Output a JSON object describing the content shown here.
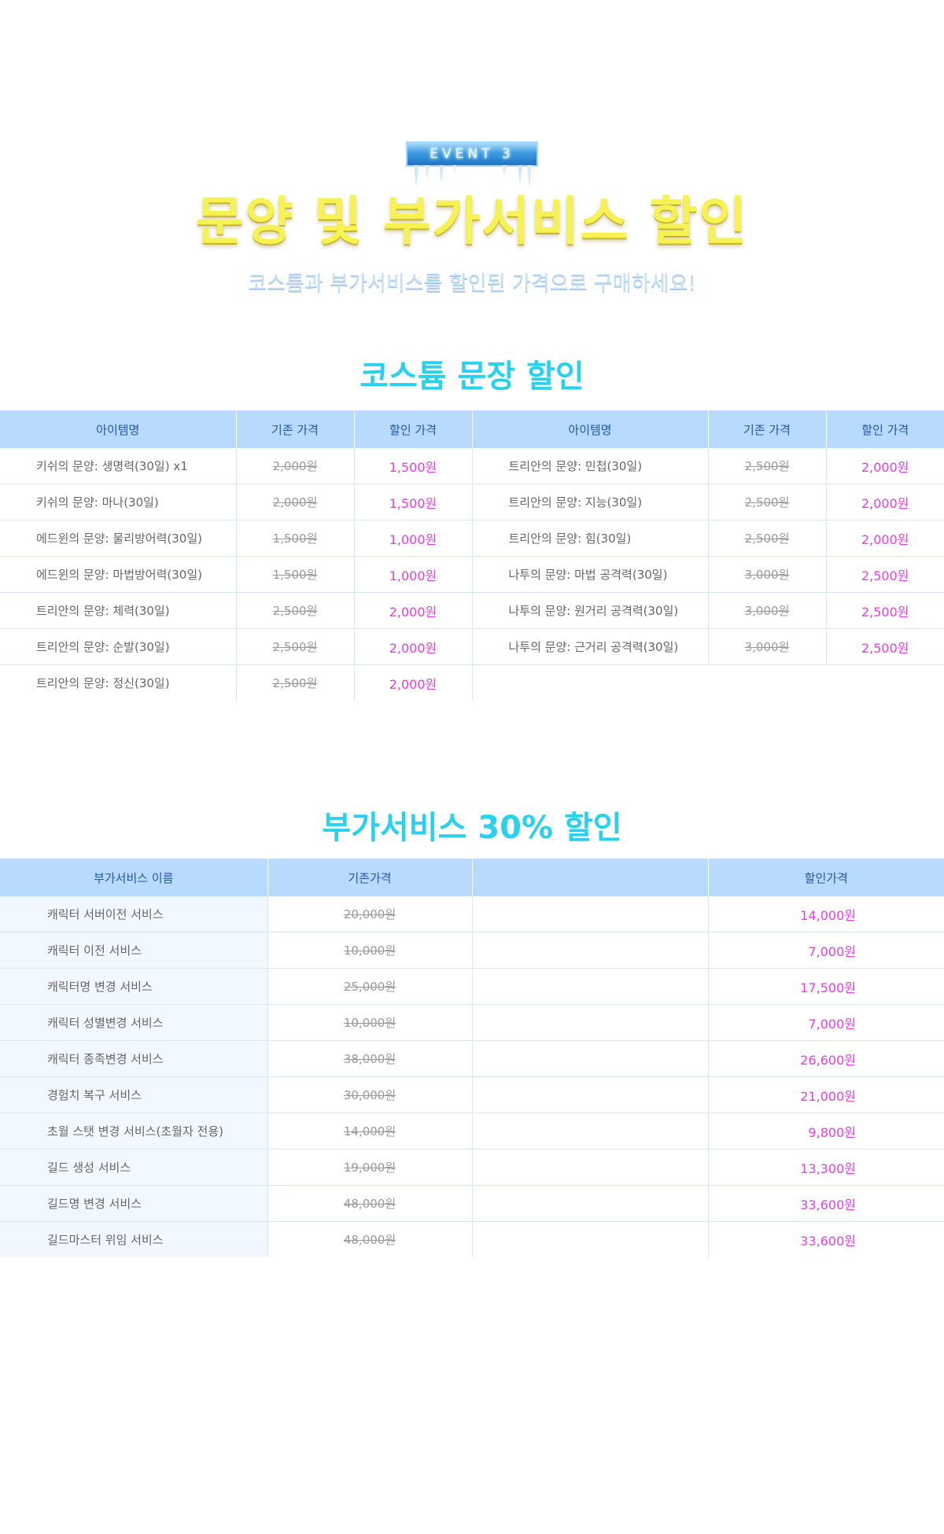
{
  "header": {
    "event_badge": "EVENT 3",
    "title": "문양 및 부가서비스 할인",
    "subtitle": "코스튬과 부가서비스를 할인된 가격으로 구매하세요!"
  },
  "costume_section": {
    "title": "코스튬 문장 할인",
    "headers": [
      "아이템명",
      "기존 가격",
      "할인 가격",
      "아이템명",
      "기존 가격",
      "할인 가격"
    ],
    "left_items": [
      {
        "name": "키쉬의 문양: 생명력(30일) x1",
        "original": "2,000원",
        "sale": "1,500원"
      },
      {
        "name": "키쉬의 문양: 마나(30일)",
        "original": "2,000원",
        "sale": "1,500원"
      },
      {
        "name": "에드윈의 문양: 물리방어력(30일)",
        "original": "1,500원",
        "sale": "1,000원"
      },
      {
        "name": "에드윈의 문양: 마법방어력(30일)",
        "original": "1,500원",
        "sale": "1,000원"
      },
      {
        "name": "트리안의 문양: 체력(30일)",
        "original": "2,500원",
        "sale": "2,000원"
      },
      {
        "name": "트리안의 문양: 순발(30일)",
        "original": "2,500원",
        "sale": "2,000원"
      },
      {
        "name": "트리안의 문양: 정신(30일)",
        "original": "2,500원",
        "sale": "2,000원"
      }
    ],
    "right_items": [
      {
        "name": "트리안의 문양: 민첩(30일)",
        "original": "2,500원",
        "sale": "2,000원"
      },
      {
        "name": "트리안의 문양: 지능(30일)",
        "original": "2,500원",
        "sale": "2,000원"
      },
      {
        "name": "트리안의 문양: 힘(30일)",
        "original": "2,500원",
        "sale": "2,000원"
      },
      {
        "name": "나투의 문양: 마법 공격력(30일)",
        "original": "3,000원",
        "sale": "2,500원"
      },
      {
        "name": "나투의 문양: 원거리 공격력(30일)",
        "original": "3,000원",
        "sale": "2,500원"
      },
      {
        "name": "나투의 문양: 근거리 공격력(30일)",
        "original": "3,000원",
        "sale": "2,500원"
      }
    ]
  },
  "service_section": {
    "title": "부가서비스 30% 할인",
    "headers": [
      "부가서비스 이름",
      "기존가격",
      "",
      "할인가격"
    ],
    "items": [
      {
        "name": "캐릭터 서버이전 서비스",
        "original": "20,000원",
        "sale": "14,000원"
      },
      {
        "name": "캐릭터 이전 서비스",
        "original": "10,000원",
        "sale": "7,000원"
      },
      {
        "name": "캐릭터명 변경 서비스",
        "original": "25,000원",
        "sale": "17,500원"
      },
      {
        "name": "캐릭터 성별변경 서비스",
        "original": "10,000원",
        "sale": "7,000원"
      },
      {
        "name": "캐릭터 종족변경 서비스",
        "original": "38,000원",
        "sale": "26,600원"
      },
      {
        "name": "경험치 복구 서비스",
        "original": "30,000원",
        "sale": "21,000원"
      },
      {
        "name": "초월 스탯 변경 서비스(초월자 전용)",
        "original": "14,000원",
        "sale": "9,800원"
      },
      {
        "name": "길드 생성 서비스",
        "original": "19,000원",
        "sale": "13,300원"
      },
      {
        "name": "길드명 변경 서비스",
        "original": "48,000원",
        "sale": "33,600원"
      },
      {
        "name": "길드마스터 위임 서비스",
        "original": "48,000원",
        "sale": "33,600원"
      }
    ]
  },
  "colors": {
    "header_bg": "#b9daff",
    "header_text": "#2358a8",
    "sale_price": "#e83ce0",
    "section_title": "#2ad1ee",
    "main_title": "#f6f254"
  }
}
